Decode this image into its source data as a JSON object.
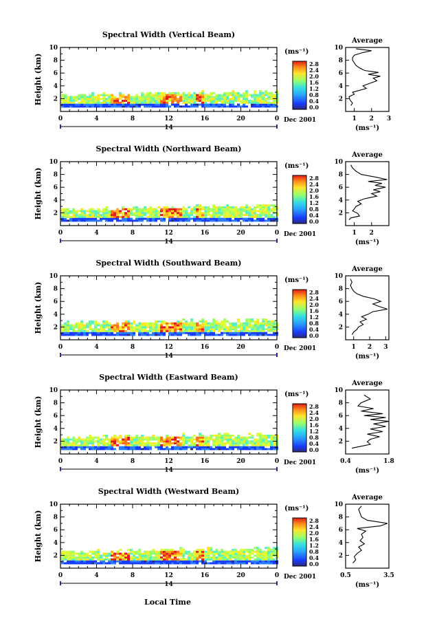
{
  "figure": {
    "xlabel_bottom": "Local Time",
    "date_label": "Dec 2001",
    "day_label": "14",
    "cbar_unit": "(ms⁻¹)",
    "avg_title": "Average",
    "avg_xunit": "(ms⁻¹)"
  },
  "chart_data": [
    {
      "type": "heatmap",
      "title": "Spectral Width (Vertical Beam)",
      "ylabel": "Height (km)",
      "xlim": [
        0,
        24
      ],
      "ylim": [
        0,
        10
      ],
      "xticks": [
        "0",
        "4",
        "8",
        "12",
        "16",
        "20",
        "0"
      ],
      "yticks": [
        "2",
        "4",
        "6",
        "8",
        "10"
      ],
      "cbar_ticks": [
        "0.0",
        "0.4",
        "0.8",
        "1.2",
        "1.6",
        "2.0",
        "2.4",
        "2.8"
      ],
      "avg_xticks": [
        "1",
        "2",
        "3"
      ],
      "avg_xlim": [
        0.5,
        3
      ],
      "avg_profile": {
        "height": [
          0.9,
          1.3,
          1.8,
          2.3,
          2.7,
          3.0,
          3.3,
          3.6,
          4.0,
          4.4,
          4.8,
          5.2,
          5.5,
          5.8,
          6.1,
          6.4,
          6.8,
          7.2,
          7.6,
          8.0,
          8.4,
          8.8,
          9.2,
          9.5,
          9.8
        ],
        "value": [
          0.8,
          0.9,
          0.75,
          0.7,
          1.0,
          0.9,
          1.3,
          1.7,
          1.5,
          1.9,
          2.3,
          2.1,
          2.5,
          1.8,
          2.4,
          1.6,
          1.3,
          1.1,
          1.0,
          0.9,
          0.9,
          1.0,
          1.5,
          2.0,
          1.1
        ]
      }
    },
    {
      "type": "heatmap",
      "title": "Spectral Width (Northward Beam)",
      "ylabel": "Height (km)",
      "xlim": [
        0,
        24
      ],
      "ylim": [
        0,
        10
      ],
      "xticks": [
        "0",
        "4",
        "8",
        "12",
        "16",
        "20",
        "0"
      ],
      "yticks": [
        "2",
        "4",
        "6",
        "8",
        "10"
      ],
      "cbar_ticks": [
        "0.0",
        "0.4",
        "0.8",
        "1.2",
        "1.6",
        "2.0",
        "2.4",
        "2.8"
      ],
      "avg_xticks": [
        "1",
        "2"
      ],
      "avg_xlim": [
        0.5,
        3
      ],
      "avg_profile": {
        "height": [
          0.9,
          1.2,
          1.5,
          1.9,
          2.3,
          2.6,
          3.0,
          3.4,
          3.8,
          4.2,
          4.6,
          5.0,
          5.3,
          5.6,
          6.0,
          6.3,
          6.6,
          6.9,
          7.2,
          7.6,
          8.0,
          8.5,
          9.0,
          9.5
        ],
        "value": [
          0.7,
          0.8,
          1.3,
          1.2,
          0.9,
          1.0,
          1.1,
          1.4,
          1.2,
          1.6,
          2.3,
          2.0,
          2.5,
          2.1,
          2.8,
          2.2,
          2.6,
          1.8,
          2.9,
          2.2,
          1.4,
          1.1,
          0.9,
          0.8
        ]
      }
    },
    {
      "type": "heatmap",
      "title": "Spectral Width (Southward Beam)",
      "ylabel": "Height (km)",
      "xlim": [
        0,
        24
      ],
      "ylim": [
        0,
        10
      ],
      "xticks": [
        "0",
        "4",
        "8",
        "12",
        "16",
        "20",
        "0"
      ],
      "yticks": [
        "2",
        "4",
        "6",
        "8",
        "10"
      ],
      "cbar_ticks": [
        "0.0",
        "0.4",
        "0.8",
        "1.2",
        "1.6",
        "2.0",
        "2.4",
        "2.8"
      ],
      "avg_xticks": [
        "1",
        "2",
        "3"
      ],
      "avg_xlim": [
        0.5,
        3.2
      ],
      "avg_profile": {
        "height": [
          0.8,
          1.2,
          1.6,
          2.0,
          2.4,
          2.8,
          3.2,
          3.6,
          4.0,
          4.4,
          4.8,
          5.2,
          5.6,
          6.0,
          6.4,
          6.8,
          7.2,
          7.6,
          8.0,
          8.5,
          9.0,
          9.5
        ],
        "value": [
          0.9,
          1.0,
          1.2,
          1.3,
          1.6,
          1.4,
          1.8,
          1.5,
          1.9,
          2.2,
          3.1,
          2.6,
          2.2,
          2.7,
          2.3,
          1.6,
          1.2,
          1.0,
          0.9,
          0.8,
          0.9,
          0.8
        ]
      }
    },
    {
      "type": "heatmap",
      "title": "Spectral Width (Eastward Beam)",
      "ylabel": "Height (km)",
      "xlim": [
        0,
        24
      ],
      "ylim": [
        0,
        10
      ],
      "xticks": [
        "0",
        "4",
        "8",
        "12",
        "16",
        "20",
        "0"
      ],
      "yticks": [
        "2",
        "4",
        "6",
        "8",
        "10"
      ],
      "cbar_ticks": [
        "0.0",
        "0.4",
        "0.8",
        "1.2",
        "1.6",
        "2.0",
        "2.4",
        "2.8"
      ],
      "avg_xticks": [
        "0.4",
        "1.8"
      ],
      "avg_xlim": [
        0.4,
        1.8
      ],
      "avg_profile": {
        "height": [
          0.9,
          1.2,
          1.5,
          1.9,
          2.3,
          2.7,
          3.1,
          3.5,
          3.9,
          4.3,
          4.7,
          5.1,
          5.4,
          5.7,
          6.0,
          6.3,
          6.7,
          7.1,
          7.5,
          8.0,
          8.6,
          9.2
        ],
        "value": [
          0.6,
          0.9,
          1.2,
          1.1,
          1.2,
          1.5,
          1.1,
          1.6,
          1.2,
          1.7,
          1.3,
          1.8,
          1.2,
          1.7,
          1.0,
          1.6,
          0.9,
          1.3,
          0.8,
          0.9,
          1.2,
          1.0
        ]
      }
    },
    {
      "type": "heatmap",
      "title": "Spectral Width (Westward Beam)",
      "ylabel": "Height (km)",
      "xlim": [
        0,
        24
      ],
      "ylim": [
        0,
        10
      ],
      "xticks": [
        "0",
        "4",
        "8",
        "12",
        "16",
        "20",
        "0"
      ],
      "yticks": [
        "2",
        "4",
        "6",
        "8",
        "10"
      ],
      "cbar_ticks": [
        "0.0",
        "0.4",
        "0.8",
        "1.2",
        "1.6",
        "2.0",
        "2.4",
        "2.8"
      ],
      "avg_xticks": [
        "0.5",
        "3.5"
      ],
      "avg_xlim": [
        0.5,
        3.5
      ],
      "avg_profile": {
        "height": [
          0.8,
          1.3,
          1.8,
          2.3,
          2.8,
          3.3,
          3.8,
          4.3,
          4.8,
          5.3,
          5.8,
          6.2,
          6.6,
          7.0,
          7.5,
          8.0,
          8.6,
          9.2,
          9.7
        ],
        "value": [
          1.0,
          1.2,
          1.1,
          1.3,
          1.6,
          1.4,
          1.8,
          1.5,
          1.7,
          1.6,
          1.9,
          1.3,
          2.9,
          3.4,
          2.0,
          1.6,
          1.5,
          1.4,
          1.6
        ]
      }
    }
  ]
}
